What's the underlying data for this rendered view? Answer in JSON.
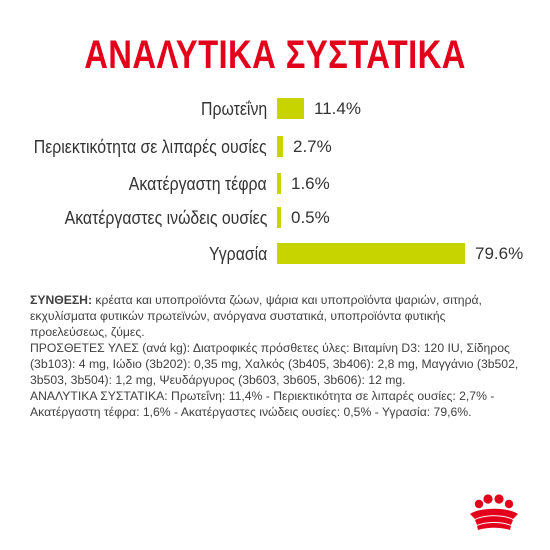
{
  "title": "ΑΝΑΛΥΤΙΚΑ ΣΥΣΤΑΤΙΚΑ",
  "bar_color": "#c8d400",
  "title_color": "#e2001a",
  "nutrients": [
    {
      "label": "Πρωτεΐνη",
      "value_text": "11.4%",
      "percent": 11.4
    },
    {
      "label": "Περιεκτικότητα σε λιπαρές ουσίες",
      "value_text": "2.7%",
      "percent": 2.7
    },
    {
      "label": "Ακατέργαστη τέφρα",
      "value_text": "1.6%",
      "percent": 1.6
    },
    {
      "label": "Ακατέργαστες ινώδεις ουσίες",
      "value_text": "0.5%",
      "percent": 0.5
    },
    {
      "label": "Υγρασία",
      "value_text": "79.6%",
      "percent": 79.6
    }
  ],
  "composition": {
    "heading": "ΣΥΝΘΕΣΗ:",
    "text": " κρέατα και υποπροϊόντα ζώων, ψάρια και υποπροϊόντα ψαριών, σιτηρά, εκχυλίσματα φυτικών πρωτεϊνών, ανόργανα συστατικά, υποπροϊόντα φυτικής προελεύσεως, ζύμες."
  },
  "additives": "ΠΡΟΣΘΕΤΕΣ ΥΛΕΣ (ανά kg): Διατροφικές πρόσθετες ύλες: Βιταμίνη D3: 120 IU, Σίδηρος (3b103): 4 mg, Ιώδιο (3b202): 0,35 mg, Χαλκός (3b405, 3b406): 2,8 mg, Μαγγάνιο (3b502, 3b503, 3b504): 1,2 mg, Ψευδάργυρος (3b603, 3b605, 3b606): 12 mg.",
  "analytical": "ΑΝΑΛΥΤΙΚΑ ΣΥΣΤΑΤΙΚΑ: Πρωτεΐνη: 11,4% - Περιεκτικότητα σε λιπαρές ουσίες: 2,7% - Ακατέργαστη τέφρα: 1,6% - Ακατέργαστες ινώδεις ουσίες: 0,5% - Υγρασία: 79,6%.",
  "logo_icon": "royal-canin-crown-icon"
}
